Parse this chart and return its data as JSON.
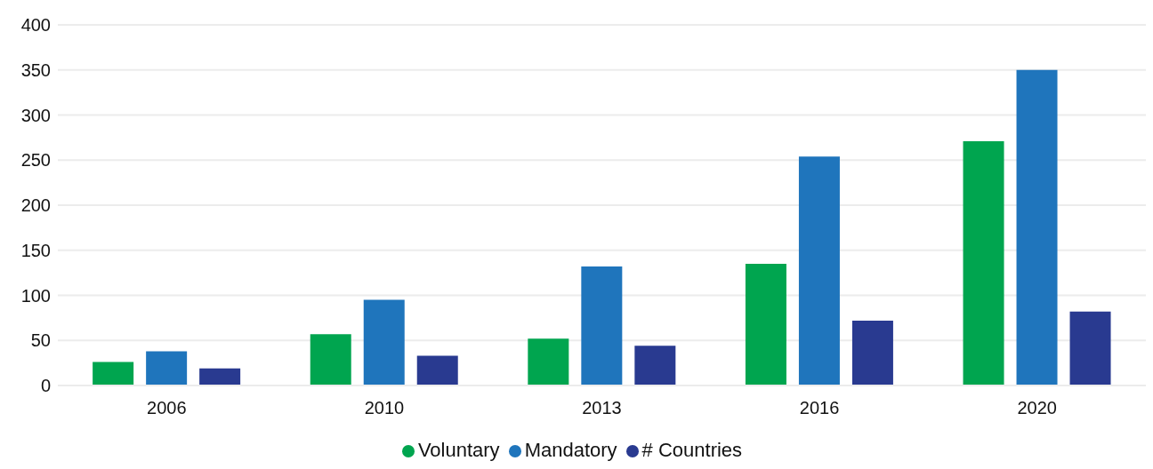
{
  "chart_data": {
    "type": "bar",
    "categories": [
      "2006",
      "2010",
      "2013",
      "2016",
      "2020"
    ],
    "series": [
      {
        "name": "Voluntary",
        "color": "#00a54f",
        "values": [
          26,
          57,
          52,
          135,
          271
        ]
      },
      {
        "name": "Mandatory",
        "color": "#1f75bc",
        "values": [
          38,
          95,
          132,
          254,
          350
        ]
      },
      {
        "name": "# Countries",
        "color": "#293a90",
        "values": [
          19,
          33,
          44,
          72,
          82
        ]
      }
    ],
    "ylim": [
      0,
      400
    ],
    "yticks": [
      0,
      50,
      100,
      150,
      200,
      250,
      300,
      350,
      400
    ],
    "grid": "y",
    "legend": "bottom"
  }
}
